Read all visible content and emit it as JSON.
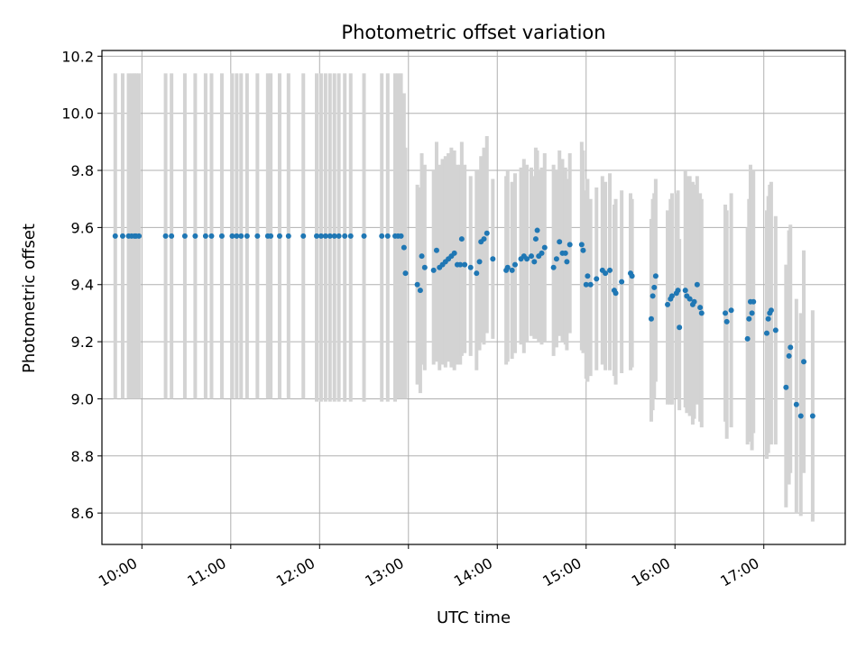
{
  "chart_data": {
    "type": "scatter",
    "title": "Photometric offset variation",
    "xlabel": "UTC time",
    "ylabel": "Photometric offset",
    "xlim": [
      "09:33",
      "17:55"
    ],
    "ylim": [
      8.49,
      10.22
    ],
    "yticks": [
      8.6,
      8.8,
      9.0,
      9.2,
      9.4,
      9.6,
      9.8,
      10.0,
      10.2
    ],
    "ytick_labels": [
      "8.6",
      "8.8",
      "9.0",
      "9.2",
      "9.4",
      "9.6",
      "9.8",
      "10.0",
      "10.2"
    ],
    "xtick_labels": [
      "10:00",
      "11:00",
      "12:00",
      "13:00",
      "14:00",
      "15:00",
      "16:00",
      "17:00"
    ],
    "grid": true,
    "colors": {
      "marker": "#1f77b4",
      "errorbar": "#d3d3d3",
      "grid": "#b0b0b0"
    },
    "points": [
      {
        "t": "09:42",
        "y": 9.57,
        "lo": 9.0,
        "hi": 10.14
      },
      {
        "t": "09:47",
        "y": 9.57,
        "lo": 9.0,
        "hi": 10.14
      },
      {
        "t": "09:51",
        "y": 9.57,
        "lo": 9.0,
        "hi": 10.14
      },
      {
        "t": "09:53",
        "y": 9.57,
        "lo": 9.0,
        "hi": 10.14
      },
      {
        "t": "09:55",
        "y": 9.57,
        "lo": 9.0,
        "hi": 10.14
      },
      {
        "t": "09:56",
        "y": 9.57,
        "lo": 9.0,
        "hi": 10.14
      },
      {
        "t": "09:58",
        "y": 9.57,
        "lo": 9.0,
        "hi": 10.14
      },
      {
        "t": "10:16",
        "y": 9.57,
        "lo": 9.0,
        "hi": 10.14
      },
      {
        "t": "10:20",
        "y": 9.57,
        "lo": 9.0,
        "hi": 10.14
      },
      {
        "t": "10:29",
        "y": 9.57,
        "lo": 9.0,
        "hi": 10.14
      },
      {
        "t": "10:36",
        "y": 9.57,
        "lo": 9.0,
        "hi": 10.14
      },
      {
        "t": "10:43",
        "y": 9.57,
        "lo": 9.0,
        "hi": 10.14
      },
      {
        "t": "10:47",
        "y": 9.57,
        "lo": 9.0,
        "hi": 10.14
      },
      {
        "t": "10:54",
        "y": 9.57,
        "lo": 9.0,
        "hi": 10.14
      },
      {
        "t": "11:01",
        "y": 9.57,
        "lo": 9.0,
        "hi": 10.14
      },
      {
        "t": "11:04",
        "y": 9.57,
        "lo": 9.0,
        "hi": 10.14
      },
      {
        "t": "11:07",
        "y": 9.57,
        "lo": 9.0,
        "hi": 10.14
      },
      {
        "t": "11:11",
        "y": 9.57,
        "lo": 9.0,
        "hi": 10.14
      },
      {
        "t": "11:18",
        "y": 9.57,
        "lo": 9.0,
        "hi": 10.14
      },
      {
        "t": "11:25",
        "y": 9.57,
        "lo": 9.0,
        "hi": 10.14
      },
      {
        "t": "11:27",
        "y": 9.57,
        "lo": 9.0,
        "hi": 10.14
      },
      {
        "t": "11:33",
        "y": 9.57,
        "lo": 9.0,
        "hi": 10.14
      },
      {
        "t": "11:39",
        "y": 9.57,
        "lo": 9.0,
        "hi": 10.14
      },
      {
        "t": "11:49",
        "y": 9.57,
        "lo": 9.0,
        "hi": 10.14
      },
      {
        "t": "11:58",
        "y": 9.57,
        "lo": 8.99,
        "hi": 10.14
      },
      {
        "t": "12:01",
        "y": 9.57,
        "lo": 8.99,
        "hi": 10.14
      },
      {
        "t": "12:04",
        "y": 9.57,
        "lo": 8.99,
        "hi": 10.14
      },
      {
        "t": "12:07",
        "y": 9.57,
        "lo": 8.99,
        "hi": 10.14
      },
      {
        "t": "12:10",
        "y": 9.57,
        "lo": 8.99,
        "hi": 10.14
      },
      {
        "t": "12:13",
        "y": 9.57,
        "lo": 8.99,
        "hi": 10.14
      },
      {
        "t": "12:17",
        "y": 9.57,
        "lo": 8.99,
        "hi": 10.14
      },
      {
        "t": "12:21",
        "y": 9.57,
        "lo": 8.99,
        "hi": 10.14
      },
      {
        "t": "12:30",
        "y": 9.57,
        "lo": 8.99,
        "hi": 10.14
      },
      {
        "t": "12:42",
        "y": 9.57,
        "lo": 8.99,
        "hi": 10.14
      },
      {
        "t": "12:46",
        "y": 9.57,
        "lo": 8.99,
        "hi": 10.14
      },
      {
        "t": "12:51",
        "y": 9.57,
        "lo": 8.99,
        "hi": 10.14
      },
      {
        "t": "12:53",
        "y": 9.57,
        "lo": 9.0,
        "hi": 10.14
      },
      {
        "t": "12:55",
        "y": 9.57,
        "lo": 9.0,
        "hi": 10.14
      },
      {
        "t": "12:57",
        "y": 9.53,
        "lo": 9.0,
        "hi": 10.07
      },
      {
        "t": "12:58",
        "y": 9.44,
        "lo": 9.0,
        "hi": 9.88
      },
      {
        "t": "13:06",
        "y": 9.4,
        "lo": 9.05,
        "hi": 9.75
      },
      {
        "t": "13:08",
        "y": 9.38,
        "lo": 9.02,
        "hi": 9.74
      },
      {
        "t": "13:09",
        "y": 9.5,
        "lo": 9.12,
        "hi": 9.86
      },
      {
        "t": "13:11",
        "y": 9.46,
        "lo": 9.1,
        "hi": 9.82
      },
      {
        "t": "13:17",
        "y": 9.45,
        "lo": 9.12,
        "hi": 9.8
      },
      {
        "t": "13:19",
        "y": 9.52,
        "lo": 9.13,
        "hi": 9.9
      },
      {
        "t": "13:21",
        "y": 9.46,
        "lo": 9.1,
        "hi": 9.82
      },
      {
        "t": "13:23",
        "y": 9.47,
        "lo": 9.12,
        "hi": 9.84
      },
      {
        "t": "13:25",
        "y": 9.48,
        "lo": 9.11,
        "hi": 9.85
      },
      {
        "t": "13:27",
        "y": 9.49,
        "lo": 9.13,
        "hi": 9.86
      },
      {
        "t": "13:29",
        "y": 9.5,
        "lo": 9.11,
        "hi": 9.88
      },
      {
        "t": "13:31",
        "y": 9.51,
        "lo": 9.1,
        "hi": 9.87
      },
      {
        "t": "13:33",
        "y": 9.47,
        "lo": 9.12,
        "hi": 9.82
      },
      {
        "t": "13:35",
        "y": 9.47,
        "lo": 9.12,
        "hi": 9.82
      },
      {
        "t": "13:36",
        "y": 9.56,
        "lo": 9.15,
        "hi": 9.9
      },
      {
        "t": "13:38",
        "y": 9.47,
        "lo": 9.16,
        "hi": 9.82
      },
      {
        "t": "13:42",
        "y": 9.46,
        "lo": 9.15,
        "hi": 9.78
      },
      {
        "t": "13:46",
        "y": 9.44,
        "lo": 9.1,
        "hi": 9.8
      },
      {
        "t": "13:48",
        "y": 9.48,
        "lo": 9.17,
        "hi": 9.8
      },
      {
        "t": "13:49",
        "y": 9.55,
        "lo": 9.2,
        "hi": 9.85
      },
      {
        "t": "13:51",
        "y": 9.56,
        "lo": 9.19,
        "hi": 9.88
      },
      {
        "t": "13:53",
        "y": 9.58,
        "lo": 9.23,
        "hi": 9.92
      },
      {
        "t": "13:57",
        "y": 9.49,
        "lo": 9.21,
        "hi": 9.77
      },
      {
        "t": "14:06",
        "y": 9.45,
        "lo": 9.12,
        "hi": 9.78
      },
      {
        "t": "14:07",
        "y": 9.46,
        "lo": 9.13,
        "hi": 9.8
      },
      {
        "t": "14:10",
        "y": 9.45,
        "lo": 9.14,
        "hi": 9.76
      },
      {
        "t": "14:12",
        "y": 9.47,
        "lo": 9.16,
        "hi": 9.79
      },
      {
        "t": "14:16",
        "y": 9.49,
        "lo": 9.19,
        "hi": 9.81
      },
      {
        "t": "14:18",
        "y": 9.5,
        "lo": 9.16,
        "hi": 9.84
      },
      {
        "t": "14:20",
        "y": 9.49,
        "lo": 9.2,
        "hi": 9.82
      },
      {
        "t": "14:23",
        "y": 9.5,
        "lo": 9.22,
        "hi": 9.81
      },
      {
        "t": "14:25",
        "y": 9.48,
        "lo": 9.21,
        "hi": 9.78
      },
      {
        "t": "14:26",
        "y": 9.56,
        "lo": 9.22,
        "hi": 9.88
      },
      {
        "t": "14:27",
        "y": 9.59,
        "lo": 9.21,
        "hi": 9.87
      },
      {
        "t": "14:28",
        "y": 9.5,
        "lo": 9.2,
        "hi": 9.8
      },
      {
        "t": "14:30",
        "y": 9.51,
        "lo": 9.19,
        "hi": 9.81
      },
      {
        "t": "14:32",
        "y": 9.53,
        "lo": 9.2,
        "hi": 9.86
      },
      {
        "t": "14:38",
        "y": 9.46,
        "lo": 9.15,
        "hi": 9.82
      },
      {
        "t": "14:40",
        "y": 9.49,
        "lo": 9.18,
        "hi": 9.8
      },
      {
        "t": "14:42",
        "y": 9.55,
        "lo": 9.22,
        "hi": 9.87
      },
      {
        "t": "14:44",
        "y": 9.51,
        "lo": 9.2,
        "hi": 9.84
      },
      {
        "t": "14:46",
        "y": 9.51,
        "lo": 9.19,
        "hi": 9.81
      },
      {
        "t": "14:47",
        "y": 9.48,
        "lo": 9.17,
        "hi": 9.77
      },
      {
        "t": "14:49",
        "y": 9.54,
        "lo": 9.23,
        "hi": 9.86
      },
      {
        "t": "14:57",
        "y": 9.54,
        "lo": 9.17,
        "hi": 9.9
      },
      {
        "t": "14:58",
        "y": 9.52,
        "lo": 9.16,
        "hi": 9.87
      },
      {
        "t": "15:00",
        "y": 9.4,
        "lo": 9.07,
        "hi": 9.73
      },
      {
        "t": "15:01",
        "y": 9.43,
        "lo": 9.06,
        "hi": 9.77
      },
      {
        "t": "15:03",
        "y": 9.4,
        "lo": 9.08,
        "hi": 9.7
      },
      {
        "t": "15:07",
        "y": 9.42,
        "lo": 9.1,
        "hi": 9.74
      },
      {
        "t": "15:11",
        "y": 9.45,
        "lo": 9.12,
        "hi": 9.78
      },
      {
        "t": "15:13",
        "y": 9.44,
        "lo": 9.1,
        "hi": 9.76
      },
      {
        "t": "15:16",
        "y": 9.45,
        "lo": 9.1,
        "hi": 9.79
      },
      {
        "t": "15:19",
        "y": 9.38,
        "lo": 9.08,
        "hi": 9.68
      },
      {
        "t": "15:20",
        "y": 9.37,
        "lo": 9.05,
        "hi": 9.7
      },
      {
        "t": "15:24",
        "y": 9.41,
        "lo": 9.09,
        "hi": 9.73
      },
      {
        "t": "15:30",
        "y": 9.44,
        "lo": 9.1,
        "hi": 9.72
      },
      {
        "t": "15:31",
        "y": 9.43,
        "lo": 9.11,
        "hi": 9.7
      },
      {
        "t": "15:44",
        "y": 9.28,
        "lo": 8.92,
        "hi": 9.63
      },
      {
        "t": "15:45",
        "y": 9.36,
        "lo": 8.96,
        "hi": 9.7
      },
      {
        "t": "15:46",
        "y": 9.39,
        "lo": 9.0,
        "hi": 9.72
      },
      {
        "t": "15:47",
        "y": 9.43,
        "lo": 9.06,
        "hi": 9.77
      },
      {
        "t": "15:55",
        "y": 9.33,
        "lo": 8.98,
        "hi": 9.66
      },
      {
        "t": "15:57",
        "y": 9.35,
        "lo": 8.98,
        "hi": 9.7
      },
      {
        "t": "15:58",
        "y": 9.36,
        "lo": 8.98,
        "hi": 9.72
      },
      {
        "t": "16:01",
        "y": 9.37,
        "lo": 9.0,
        "hi": 9.72
      },
      {
        "t": "16:02",
        "y": 9.38,
        "lo": 9.01,
        "hi": 9.73
      },
      {
        "t": "16:03",
        "y": 9.25,
        "lo": 8.96,
        "hi": 9.56
      },
      {
        "t": "16:07",
        "y": 9.38,
        "lo": 8.97,
        "hi": 9.8
      },
      {
        "t": "16:08",
        "y": 9.36,
        "lo": 8.95,
        "hi": 9.78
      },
      {
        "t": "16:10",
        "y": 9.35,
        "lo": 8.94,
        "hi": 9.78
      },
      {
        "t": "16:12",
        "y": 9.33,
        "lo": 8.91,
        "hi": 9.76
      },
      {
        "t": "16:13",
        "y": 9.34,
        "lo": 8.93,
        "hi": 9.75
      },
      {
        "t": "16:15",
        "y": 9.4,
        "lo": 8.98,
        "hi": 9.78
      },
      {
        "t": "16:17",
        "y": 9.32,
        "lo": 8.92,
        "hi": 9.72
      },
      {
        "t": "16:18",
        "y": 9.3,
        "lo": 8.9,
        "hi": 9.7
      },
      {
        "t": "16:34",
        "y": 9.3,
        "lo": 8.92,
        "hi": 9.68
      },
      {
        "t": "16:35",
        "y": 9.27,
        "lo": 8.86,
        "hi": 9.66
      },
      {
        "t": "16:38",
        "y": 9.31,
        "lo": 8.9,
        "hi": 9.72
      },
      {
        "t": "16:49",
        "y": 9.21,
        "lo": 8.84,
        "hi": 9.6
      },
      {
        "t": "16:50",
        "y": 9.28,
        "lo": 8.87,
        "hi": 9.7
      },
      {
        "t": "16:51",
        "y": 9.34,
        "lo": 8.85,
        "hi": 9.82
      },
      {
        "t": "16:52",
        "y": 9.3,
        "lo": 8.82,
        "hi": 9.78
      },
      {
        "t": "16:53",
        "y": 9.34,
        "lo": 8.88,
        "hi": 9.8
      },
      {
        "t": "17:02",
        "y": 9.23,
        "lo": 8.79,
        "hi": 9.66
      },
      {
        "t": "17:03",
        "y": 9.28,
        "lo": 8.81,
        "hi": 9.71
      },
      {
        "t": "17:04",
        "y": 9.3,
        "lo": 8.85,
        "hi": 9.75
      },
      {
        "t": "17:05",
        "y": 9.31,
        "lo": 8.84,
        "hi": 9.76
      },
      {
        "t": "17:08",
        "y": 9.24,
        "lo": 8.84,
        "hi": 9.64
      },
      {
        "t": "17:15",
        "y": 9.04,
        "lo": 8.62,
        "hi": 9.47
      },
      {
        "t": "17:17",
        "y": 9.15,
        "lo": 8.7,
        "hi": 9.59
      },
      {
        "t": "17:18",
        "y": 9.18,
        "lo": 8.74,
        "hi": 9.61
      },
      {
        "t": "17:22",
        "y": 8.98,
        "lo": 8.6,
        "hi": 9.35
      },
      {
        "t": "17:25",
        "y": 8.94,
        "lo": 8.59,
        "hi": 9.3
      },
      {
        "t": "17:27",
        "y": 9.13,
        "lo": 8.74,
        "hi": 9.52
      },
      {
        "t": "17:33",
        "y": 8.94,
        "lo": 8.57,
        "hi": 9.31
      }
    ]
  }
}
